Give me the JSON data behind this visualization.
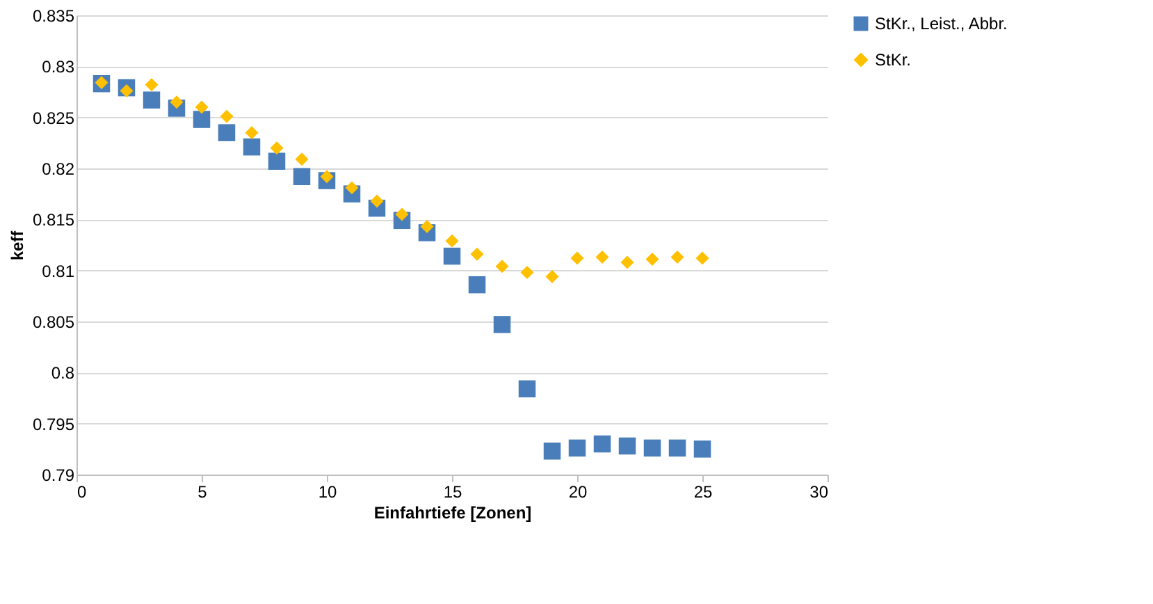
{
  "chart_data": {
    "type": "scatter",
    "xlabel": "Einfahrtiefe [Zonen]",
    "ylabel": "keff",
    "x": [
      1,
      2,
      3,
      4,
      5,
      6,
      7,
      8,
      9,
      10,
      11,
      12,
      13,
      14,
      15,
      16,
      17,
      18,
      19,
      20,
      21,
      22,
      23,
      24,
      25
    ],
    "xlim": [
      0,
      30
    ],
    "xticks": [
      0,
      5,
      10,
      15,
      20,
      25,
      30
    ],
    "ylim": [
      0.79,
      0.835
    ],
    "yticks": [
      0.79,
      0.795,
      0.8,
      0.805,
      0.81,
      0.815,
      0.82,
      0.825,
      0.83,
      0.835
    ],
    "grid": "y",
    "legend": "right",
    "series": [
      {
        "name": "StKr., Leist., Abbr.",
        "color": "#4a7ebb",
        "marker": "square",
        "values": [
          0.8283,
          0.8279,
          0.8267,
          0.8259,
          0.8248,
          0.8235,
          0.8221,
          0.8207,
          0.8192,
          0.8188,
          0.8175,
          0.8161,
          0.8149,
          0.8137,
          0.8114,
          0.8086,
          0.8047,
          0.7984,
          0.7923,
          0.7926,
          0.793,
          0.7928,
          0.7926,
          0.7926,
          0.7925
        ]
      },
      {
        "name": "StKr.",
        "color": "#ffc000",
        "marker": "diamond",
        "values": [
          0.8284,
          0.8276,
          0.8282,
          0.8265,
          0.826,
          0.8251,
          0.8235,
          0.822,
          0.8209,
          0.8192,
          0.8181,
          0.8168,
          0.8155,
          0.8143,
          0.8129,
          0.8116,
          0.8104,
          0.8098,
          0.8094,
          0.8112,
          0.8113,
          0.8108,
          0.8111,
          0.8113,
          0.8112
        ]
      }
    ]
  }
}
